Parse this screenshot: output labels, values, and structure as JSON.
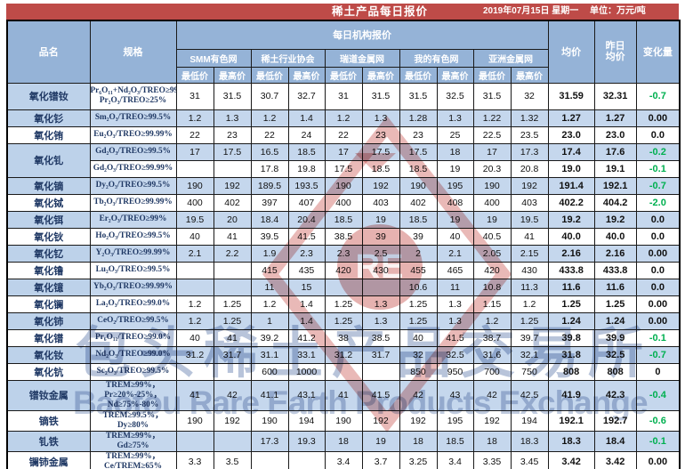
{
  "title_bar": {
    "title": "稀土产品每日报价",
    "date": "2019年07月15日 星期一",
    "unit": "单位：万元/吨"
  },
  "header": {
    "product": "品名",
    "spec": "规格",
    "daily_quotes": "每日机构报价",
    "agencies": [
      "SMM有色网",
      "稀土行业协会",
      "瑞道金属网",
      "我的有色网",
      "亚洲金属网"
    ],
    "low": "最低价",
    "high": "最高价",
    "avg": "均价",
    "prev_avg": "昨日均价",
    "change": "变化量"
  },
  "colors": {
    "title_bar_red": "#BE4B48",
    "header_blue": "#95B3D7",
    "row_blue": "#C5D7ED",
    "name_cell_blue": "#BDD2EA",
    "negative_change_green": "#00B050",
    "spec_text_navy": "#1F3864"
  },
  "watermarks": {
    "logo_text": "RE",
    "cn": "包头稀土产品交易所",
    "en": "Baotou Rare Earth Products Exchange"
  },
  "table": {
    "rows": [
      {
        "name": "氧化镨钕",
        "spec": "Pr₆O₁₁+Nd₂O₃/TREO≥99%，\nPr₂O₃/TREO≥25%",
        "q": [
          "31",
          "31.5",
          "30.7",
          "32.7",
          "31",
          "31.5",
          "31.5",
          "32.5",
          "31.5",
          "32"
        ],
        "avg": "31.59",
        "prev": "32.31",
        "chg": "-0.7",
        "tall": true,
        "shade": false,
        "nshade": true
      },
      {
        "name": "氧化钐",
        "spec": "Sm₂O₃/TREO≥99.5%",
        "q": [
          "1.2",
          "1.3",
          "1.2",
          "1.4",
          "1.2",
          "1.3",
          "1.28",
          "1.3",
          "1.22",
          "1.32"
        ],
        "avg": "1.27",
        "prev": "1.27",
        "chg": "0.00",
        "shade": true,
        "nshade": true
      },
      {
        "name": "氧化铕",
        "spec": "Eu₂O₃/TREO≥99.99%",
        "q": [
          "22",
          "23",
          "22",
          "24",
          "22",
          "23",
          "23",
          "25",
          "22.5",
          "23.5"
        ],
        "avg": "23.0",
        "prev": "23.0",
        "chg": "0.0",
        "shade": false,
        "nshade": false
      },
      {
        "name": "氧化钆",
        "rowspan": 2,
        "spec": "Gd₂O₃/TREO≥99.5%",
        "q": [
          "17",
          "17.5",
          "16.5",
          "18.5",
          "17",
          "17.5",
          "17.5",
          "18",
          "17",
          "17.3"
        ],
        "avg": "17.4",
        "prev": "17.6",
        "chg": "-0.2",
        "shade": true,
        "nshade": true
      },
      {
        "name": null,
        "spec": "Gd₂O₃/TREO≥99.99%",
        "q": [
          "",
          "",
          "17.8",
          "19.8",
          "17.5",
          "18.5",
          "18.5",
          "19",
          "20.3",
          "20.8"
        ],
        "avg": "19.0",
        "prev": "19.1",
        "chg": "-0.1",
        "shade": false
      },
      {
        "name": "氧化镝",
        "spec": "Dy₂O₃/TREO≥99.5%",
        "q": [
          "190",
          "192",
          "189.5",
          "193.5",
          "190",
          "192",
          "190",
          "195",
          "190",
          "192"
        ],
        "avg": "191.4",
        "prev": "192.1",
        "chg": "-0.7",
        "shade": true,
        "nshade": true
      },
      {
        "name": "氧化铽",
        "spec": "Tb₂O₃/TREO≥99.99%",
        "q": [
          "400",
          "402",
          "397",
          "407",
          "400",
          "403",
          "402",
          "408",
          "400",
          "403"
        ],
        "avg": "402.2",
        "prev": "404.2",
        "chg": "-2.0",
        "shade": false,
        "nshade": false
      },
      {
        "name": "氧化铒",
        "spec": "Er₂O₃/TREO≥99%",
        "q": [
          "19.5",
          "20",
          "18.4",
          "20.4",
          "18.5",
          "19",
          "18.5",
          "19",
          "19",
          "19.5"
        ],
        "avg": "19.2",
        "prev": "19.2",
        "chg": "0.0",
        "shade": true,
        "nshade": true
      },
      {
        "name": "氧化钬",
        "spec": "Ho₂O₃/TREO≥99.5%",
        "q": [
          "40",
          "41",
          "39.5",
          "41.5",
          "38.5",
          "39",
          "39",
          "40",
          "40.5",
          "41"
        ],
        "avg": "40.0",
        "prev": "40.0",
        "chg": "0.0",
        "shade": false,
        "nshade": false
      },
      {
        "name": "氧化钇",
        "spec": "Y₂O₃/TREO≥99.99%",
        "q": [
          "2.1",
          "2.2",
          "1.9",
          "2.3",
          "2.3",
          "2.5",
          "2",
          "2.1",
          "2.05",
          "2.15"
        ],
        "avg": "2.16",
        "prev": "2.16",
        "chg": "0.00",
        "shade": true,
        "nshade": true
      },
      {
        "name": "氧化镥",
        "spec": "Lu₂O₃/TREO≥99.5%",
        "q": [
          "",
          "",
          "415",
          "435",
          "420",
          "430",
          "455",
          "465",
          "420",
          "430"
        ],
        "avg": "433.8",
        "prev": "433.8",
        "chg": "0.0",
        "shade": false,
        "nshade": false
      },
      {
        "name": "氧化镱",
        "spec": "Yb₂O₃/TREO≥99.99%",
        "q": [
          "",
          "",
          "11",
          "15",
          "",
          "",
          "10.6",
          "11",
          "10.8",
          "11.3"
        ],
        "avg": "11.6",
        "prev": "11.6",
        "chg": "0.0",
        "shade": true,
        "nshade": true
      },
      {
        "name": "氧化镧",
        "spec": "La₂O₃/TREO≥99.0%",
        "q": [
          "1.2",
          "1.25",
          "1.2",
          "1.4",
          "1.25",
          "1.3",
          "1.25",
          "1.3",
          "1.15",
          "1.2"
        ],
        "avg": "1.25",
        "prev": "1.25",
        "chg": "0.00",
        "shade": false,
        "nshade": false
      },
      {
        "name": "氧化铈",
        "spec": "CeO₂/TREO≥99.5%",
        "q": [
          "1.2",
          "1.25",
          "1",
          "1.4",
          "1.25",
          "1.3",
          "1.25",
          "1.3",
          "1.2",
          "1.25"
        ],
        "avg": "1.24",
        "prev": "1.24",
        "chg": "0.00",
        "shade": true,
        "nshade": true
      },
      {
        "name": "氧化镨",
        "spec": "Pr₆O₁₁/TREO≥99.0%",
        "q": [
          "40",
          "41",
          "39.2",
          "41.2",
          "38",
          "38.5",
          "40",
          "41.5",
          "38.7",
          "39.7"
        ],
        "avg": "39.8",
        "prev": "39.9",
        "chg": "-0.1",
        "shade": false,
        "nshade": false
      },
      {
        "name": "氧化钕",
        "spec": "Nd₂O₃/TREO≥99.0%",
        "q": [
          "31.2",
          "31.7",
          "31.1",
          "33.1",
          "31.2",
          "31.7",
          "32",
          "32.5",
          "31.6",
          "32.1"
        ],
        "avg": "31.8",
        "prev": "32.5",
        "chg": "-0.7",
        "shade": true,
        "nshade": true
      },
      {
        "name": "氧化钪",
        "spec": "Sc₂O₃/TREO≥99.5%",
        "q": [
          "",
          "",
          "600",
          "1000",
          "",
          "",
          "850",
          "950",
          "700",
          "750"
        ],
        "avg": "808",
        "prev": "808",
        "chg": "0",
        "shade": false,
        "nshade": false
      },
      {
        "name": "镨钕金属",
        "spec": "TREM≥99%，Pr≥20%-25%，\nNd≥75%-80%",
        "q": [
          "41",
          "42",
          "41.1",
          "43.1",
          "41",
          "41.5",
          "42",
          "43",
          "42",
          "42.5"
        ],
        "avg": "41.9",
        "prev": "42.3",
        "chg": "-0.4",
        "tall": true,
        "shade": true,
        "nshade": true
      },
      {
        "name": "镝铁",
        "spec": "TREM≥99.5%，Dy≥80%",
        "q": [
          "190",
          "192",
          "190",
          "194",
          "190",
          "192",
          "192",
          "195",
          "192",
          "194"
        ],
        "avg": "192.1",
        "prev": "192.7",
        "chg": "-0.6",
        "shade": false,
        "nshade": false
      },
      {
        "name": "钆铁",
        "spec": "TREM≥99%，Gd≥75%",
        "q": [
          "",
          "",
          "17.3",
          "19.3",
          "18",
          "19",
          "18",
          "18.5",
          "18",
          "18.3"
        ],
        "avg": "18.3",
        "prev": "18.4",
        "chg": "-0.1",
        "shade": true,
        "nshade": true
      },
      {
        "name": "镧铈金属",
        "spec": "TREM≥99%，Ce/TREM≥65%",
        "q": [
          "3.3",
          "3.5",
          "",
          "",
          "3.4",
          "3.7",
          "3.25",
          "3.4",
          "3.35",
          "3.45"
        ],
        "avg": "3.42",
        "prev": "3.42",
        "chg": "0.00",
        "shade": false,
        "nshade": false
      }
    ]
  }
}
